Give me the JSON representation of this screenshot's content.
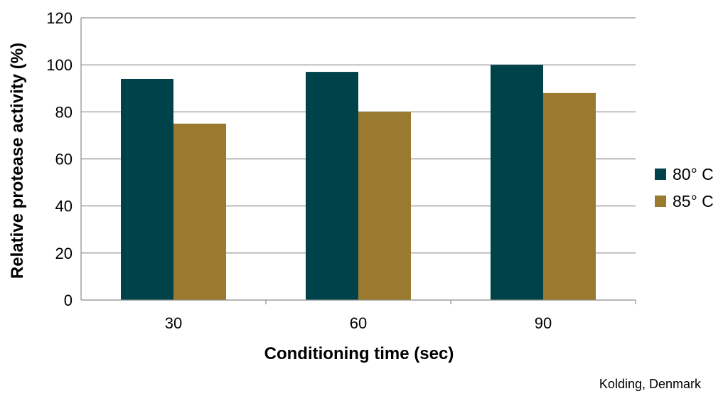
{
  "chart_data": {
    "type": "bar",
    "categories": [
      "30",
      "60",
      "90"
    ],
    "series": [
      {
        "name": "80° C",
        "color": "#00424a",
        "values": [
          94,
          97,
          100
        ]
      },
      {
        "name": "85° C",
        "color": "#9a7a2e",
        "values": [
          75,
          80,
          88
        ]
      }
    ],
    "xlabel": "Conditioning time (sec)",
    "ylabel": "Relative protease activity (%)",
    "ylim": [
      0,
      120
    ],
    "yticks": [
      0,
      20,
      40,
      60,
      80,
      100,
      120
    ],
    "grid": true,
    "legend_position": "right"
  },
  "source_note": "Kolding, Denmark"
}
